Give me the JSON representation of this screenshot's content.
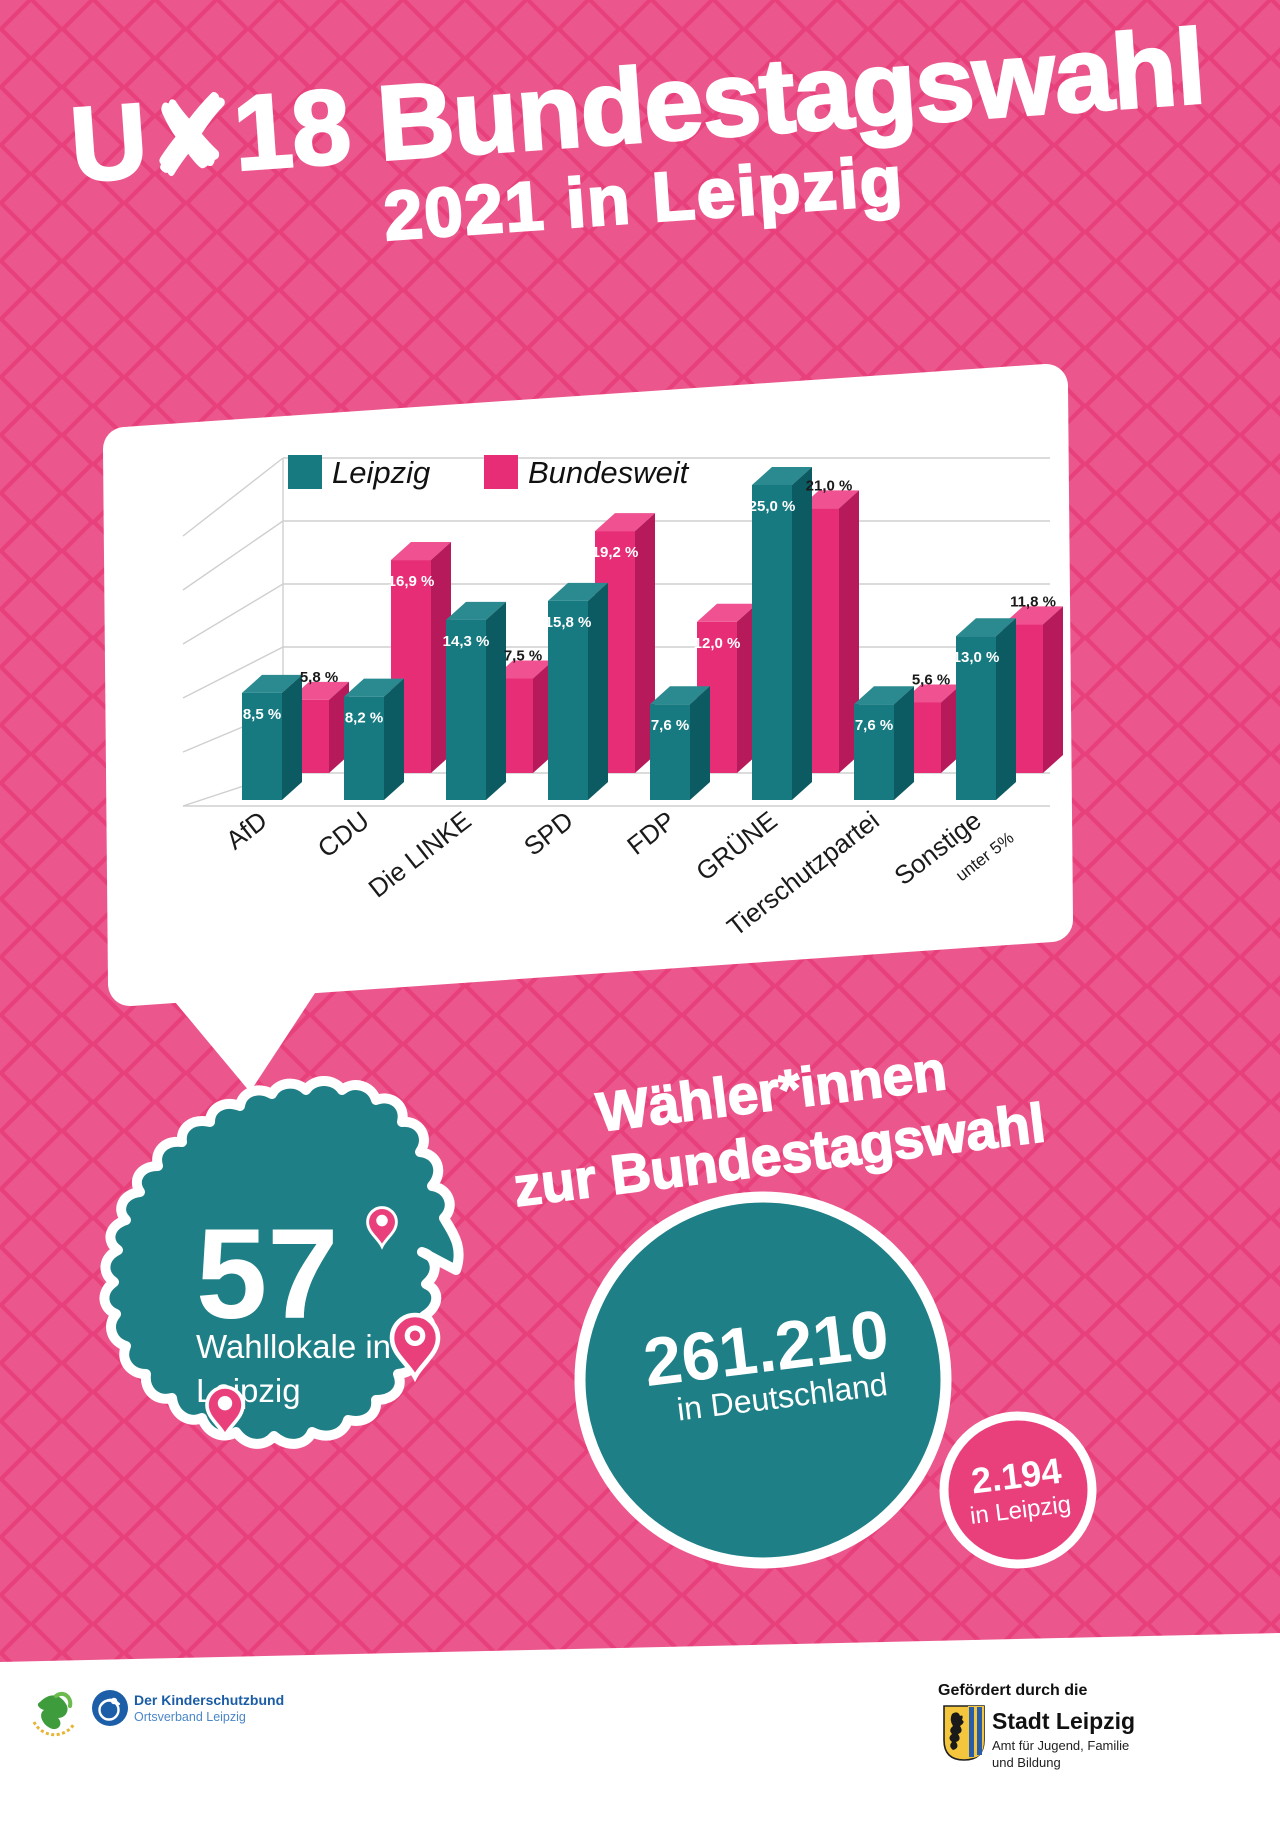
{
  "title": {
    "line1": "U✘18 Bundestagswahl",
    "line2": "2021 in Leipzig"
  },
  "chart_data": {
    "type": "bar",
    "style": "3d-column",
    "categories": [
      "AfD",
      "CDU",
      "Die LINKE",
      "SPD",
      "FDP",
      "GRÜNE",
      "Tierschutzpartei",
      "Sonstige"
    ],
    "category_note": {
      "category": "Sonstige",
      "text": "unter 5%"
    },
    "series": [
      {
        "name": "Leipzig",
        "color": "#177A81",
        "values": [
          8.5,
          8.2,
          14.3,
          15.8,
          7.6,
          25.0,
          7.6,
          13.0
        ],
        "labels": [
          "8,5 %",
          "8,2 %",
          "14,3 %",
          "15,8 %",
          "7,6 %",
          "25,0 %",
          "7,6 %",
          "13,0 %"
        ],
        "label_inside": [
          true,
          true,
          true,
          true,
          true,
          true,
          true,
          true
        ]
      },
      {
        "name": "Bundesweit",
        "color": "#E82D77",
        "values": [
          5.8,
          16.9,
          7.5,
          19.2,
          12.0,
          21.0,
          5.6,
          11.8
        ],
        "labels": [
          "5,8 %",
          "16,9 %",
          "7,5 %",
          "19,2 %",
          "12,0 %",
          "21,0 %",
          "5,6 %",
          "11,8 %"
        ],
        "label_inside": [
          false,
          true,
          false,
          true,
          true,
          false,
          false,
          false
        ]
      }
    ],
    "ylim": [
      0,
      25
    ],
    "grid": true,
    "legend_position": "top"
  },
  "map_stat": {
    "number": "57",
    "label_line1": "Wahllokale in",
    "label_line2": "Leipzig"
  },
  "voters": {
    "heading_line1": "Wähler*innen",
    "heading_line2": "zur Bundestagswahl",
    "germany": {
      "number": "261.210",
      "label": "in Deutschland"
    },
    "leipzig": {
      "number": "2.194",
      "label": "in Leipzig"
    }
  },
  "footer": {
    "kinderschutzbund": {
      "line1": "Der Kinderschutzbund",
      "line2": "Ortsverband Leipzig"
    },
    "funding": {
      "intro": "Gefördert durch die",
      "name": "Stadt Leipzig",
      "dept_line1": "Amt für Jugend, Familie",
      "dept_line2": "und Bildung"
    }
  },
  "colors": {
    "background_pink": "#E8407B",
    "pattern_pink": "#EB578C",
    "teal": "#177A81",
    "bar_pink": "#E82D77",
    "circle_teal": "#1E7F86",
    "small_circle_pink": "#E9407B"
  }
}
